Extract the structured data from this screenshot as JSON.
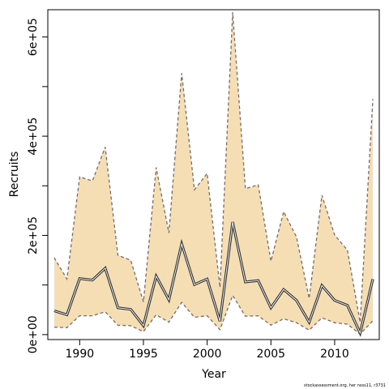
{
  "chart_data": {
    "type": "line",
    "xlabel": "Year",
    "ylabel": "Recruits",
    "xlim": [
      1987.5,
      2013.5
    ],
    "ylim": [
      -10000,
      655000
    ],
    "x_ticks": [
      1990,
      1995,
      2000,
      2005,
      2010
    ],
    "x_tick_labels": [
      "1990",
      "1995",
      "2000",
      "2005",
      "2010"
    ],
    "y_ticks": [
      0,
      200000,
      400000,
      600000
    ],
    "y_tick_labels": [
      "0e+00",
      "2e+05",
      "4e+05",
      "6e+05"
    ],
    "y_minor_ticks": [
      100000,
      300000,
      500000
    ],
    "grid": false,
    "fill_color": "#F5DEB3",
    "line_color": "#333333",
    "bound_line_color": "#7a6a6a",
    "x": [
      1988,
      1989,
      1990,
      1991,
      1992,
      1993,
      1994,
      1995,
      1996,
      1997,
      1998,
      1999,
      2000,
      2001,
      2002,
      2003,
      2004,
      2005,
      2006,
      2007,
      2008,
      2009,
      2010,
      2011,
      2012,
      2013
    ],
    "series": [
      {
        "name": "",
        "role": "estimate",
        "values": [
          48000,
          40000,
          113000,
          110000,
          134000,
          54000,
          51000,
          18000,
          118000,
          70000,
          183000,
          101000,
          112000,
          27000,
          227000,
          106000,
          109000,
          54000,
          91000,
          69000,
          25000,
          99000,
          69000,
          59000,
          3000,
          112000
        ]
      },
      {
        "name": "",
        "role": "upper",
        "values": [
          155000,
          112000,
          318000,
          310000,
          378000,
          160000,
          150000,
          66000,
          337000,
          205000,
          527000,
          292000,
          325000,
          95000,
          650000,
          294000,
          302000,
          148000,
          248000,
          197000,
          73000,
          281000,
          201000,
          170000,
          25000,
          475000
        ]
      },
      {
        "name": "",
        "role": "lower",
        "values": [
          15000,
          14000,
          38000,
          38000,
          46000,
          19000,
          18000,
          6000,
          40000,
          25000,
          65000,
          35000,
          38000,
          10000,
          79000,
          37000,
          38000,
          19000,
          32000,
          24000,
          9000,
          34000,
          24000,
          21000,
          1000,
          28000
        ]
      }
    ]
  },
  "caption": "stockassessment.org, her nsss11, r3731"
}
